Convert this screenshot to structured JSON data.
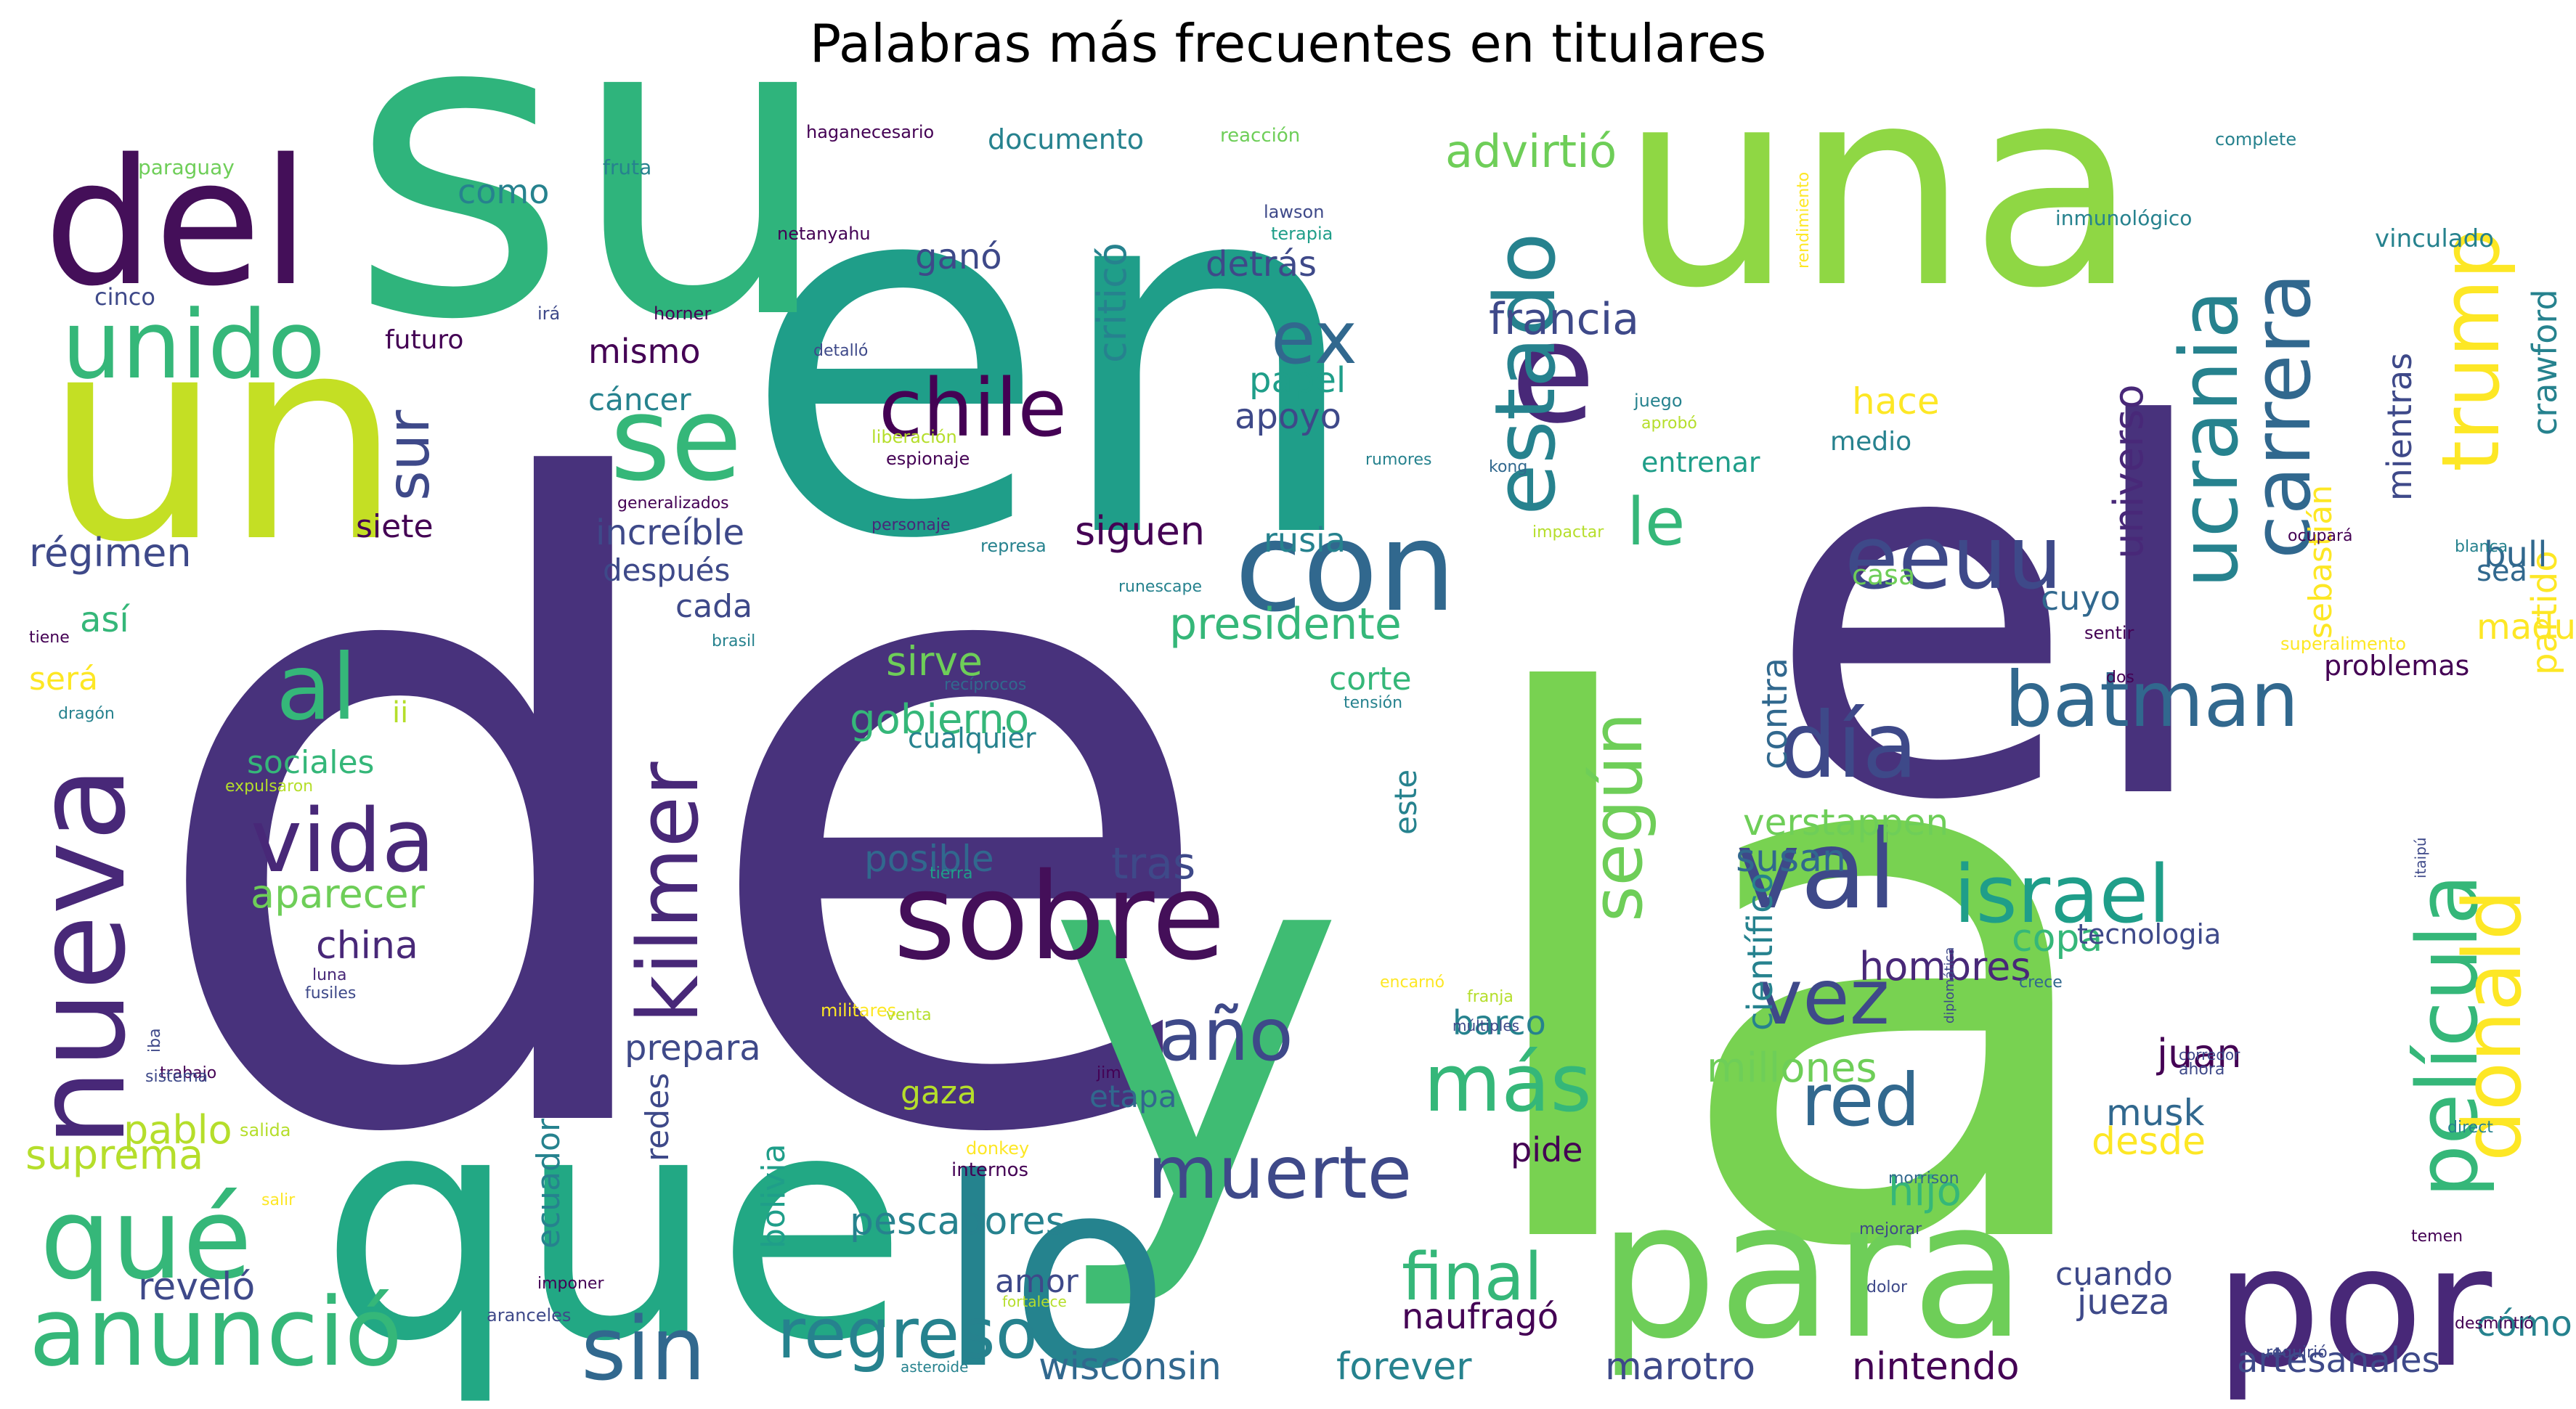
{
  "title": "Palabras más frecuentes en titulares",
  "palette": [
    "#440154",
    "#482878",
    "#3e4989",
    "#31688e",
    "#26828e",
    "#1f9e89",
    "#35b779",
    "#6ece58",
    "#b5de2b",
    "#fde725"
  ],
  "words": [
    {
      "text": "de",
      "color": "#48327c"
    },
    {
      "text": "la",
      "color": "#78d251"
    },
    {
      "text": "el",
      "color": "#48327c"
    },
    {
      "text": "en",
      "color": "#1f9e89"
    },
    {
      "text": "su",
      "color": "#2fb47c"
    },
    {
      "text": "que",
      "color": "#22a884"
    },
    {
      "text": "y",
      "color": "#3fbc73"
    },
    {
      "text": "un",
      "color": "#c4df24"
    },
    {
      "text": "una",
      "color": "#8fd744"
    },
    {
      "text": "lo",
      "color": "#25838e"
    },
    {
      "text": "del",
      "color": "#440f59"
    },
    {
      "text": "para",
      "color": "#6ece58"
    },
    {
      "text": "por",
      "color": "#482878"
    },
    {
      "text": "con",
      "color": "#31688e"
    },
    {
      "text": "e",
      "color": "#482878"
    },
    {
      "text": "se",
      "color": "#35b779"
    },
    {
      "text": "sobre",
      "color": "#440f59"
    },
    {
      "text": "val",
      "color": "#3e4989"
    },
    {
      "text": "nueva",
      "color": "#482878"
    },
    {
      "text": "unido",
      "color": "#35b779"
    },
    {
      "text": "qué",
      "color": "#35b779"
    },
    {
      "text": "anunció",
      "color": "#35b779"
    },
    {
      "text": "sin",
      "color": "#31688e"
    },
    {
      "text": "kilmer",
      "color": "#482878"
    },
    {
      "text": "vida",
      "color": "#482878"
    },
    {
      "text": "al",
      "color": "#35b779"
    },
    {
      "text": "eeuu",
      "color": "#3e4989"
    },
    {
      "text": "día",
      "color": "#3e4989"
    },
    {
      "text": "batman",
      "color": "#31688e"
    },
    {
      "text": "israel",
      "color": "#1f9e89"
    },
    {
      "text": "vez",
      "color": "#3e4989"
    },
    {
      "text": "chile",
      "color": "#440154"
    },
    {
      "text": "estado",
      "color": "#26828e"
    },
    {
      "text": "ex",
      "color": "#31688e"
    },
    {
      "text": "ucrania",
      "color": "#26828e"
    },
    {
      "text": "carrera",
      "color": "#31688e"
    },
    {
      "text": "trump",
      "color": "#fde725"
    },
    {
      "text": "película",
      "color": "#35b779"
    },
    {
      "text": "donald",
      "color": "#fde725"
    },
    {
      "text": "más",
      "color": "#35b779"
    },
    {
      "text": "red",
      "color": "#31688e"
    },
    {
      "text": "muerte",
      "color": "#3e4989"
    },
    {
      "text": "año",
      "color": "#3e4989"
    },
    {
      "text": "regreso",
      "color": "#26828e"
    },
    {
      "text": "final",
      "color": "#35b779"
    },
    {
      "text": "según",
      "color": "#6ece58"
    },
    {
      "text": "le",
      "color": "#35b779"
    },
    {
      "text": "sur",
      "color": "#3e4989"
    },
    {
      "text": "advirtió",
      "color": "#6ece58"
    },
    {
      "text": "francia",
      "color": "#3e4989"
    },
    {
      "text": "presidente",
      "color": "#35b779"
    },
    {
      "text": "gobierno",
      "color": "#35b779"
    },
    {
      "text": "sirve",
      "color": "#6ece58"
    },
    {
      "text": "posible",
      "color": "#31688e"
    },
    {
      "text": "tras",
      "color": "#3e4989"
    },
    {
      "text": "aparecer",
      "color": "#6ece58"
    },
    {
      "text": "china",
      "color": "#482878"
    },
    {
      "text": "pablo",
      "color": "#b5de2b"
    },
    {
      "text": "suprema",
      "color": "#b5de2b"
    },
    {
      "text": "reveló",
      "color": "#3e4989"
    },
    {
      "text": "pescadores",
      "color": "#26828e"
    },
    {
      "text": "wisconsin",
      "color": "#31688e"
    },
    {
      "text": "forever",
      "color": "#26828e"
    },
    {
      "text": "naufragó",
      "color": "#440154"
    },
    {
      "text": "marotro",
      "color": "#3e4989"
    },
    {
      "text": "nintendo",
      "color": "#440154"
    },
    {
      "text": "artesanales",
      "color": "#3e4989"
    },
    {
      "text": "cómo",
      "color": "#26828e"
    },
    {
      "text": "jueza",
      "color": "#3e4989"
    },
    {
      "text": "cuando",
      "color": "#3e4989"
    },
    {
      "text": "desde",
      "color": "#fde725"
    },
    {
      "text": "musk",
      "color": "#31688e"
    },
    {
      "text": "juan",
      "color": "#440154"
    },
    {
      "text": "hijo",
      "color": "#35b779"
    },
    {
      "text": "millones",
      "color": "#6ece58"
    },
    {
      "text": "hombres",
      "color": "#482878"
    },
    {
      "text": "copa",
      "color": "#35b779"
    },
    {
      "text": "tecnologia",
      "color": "#3e4989"
    },
    {
      "text": "verstappen",
      "color": "#6ece58"
    },
    {
      "text": "susan",
      "color": "#31688e"
    },
    {
      "text": "contra",
      "color": "#31688e"
    },
    {
      "text": "científico",
      "color": "#26828e"
    },
    {
      "text": "partido",
      "color": "#fde725"
    },
    {
      "text": "maduro",
      "color": "#fde725"
    },
    {
      "text": "sea",
      "color": "#31688e"
    },
    {
      "text": "bull",
      "color": "#31688e"
    },
    {
      "text": "mientras",
      "color": "#3e4989"
    },
    {
      "text": "crawford",
      "color": "#26828e"
    },
    {
      "text": "sebastián",
      "color": "#fde725"
    },
    {
      "text": "universo",
      "color": "#482878"
    },
    {
      "text": "hace",
      "color": "#fde725"
    },
    {
      "text": "medio",
      "color": "#26828e"
    },
    {
      "text": "siguen",
      "color": "#440154"
    },
    {
      "text": "cuyo",
      "color": "#31688e"
    },
    {
      "text": "rusia",
      "color": "#26828e"
    },
    {
      "text": "apoyo",
      "color": "#3e4989"
    },
    {
      "text": "papel",
      "color": "#1f9e89"
    },
    {
      "text": "detrás",
      "color": "#3e4989"
    },
    {
      "text": "ganó",
      "color": "#3e4989"
    },
    {
      "text": "criticó",
      "color": "#26828e"
    },
    {
      "text": "documento",
      "color": "#26828e"
    },
    {
      "text": "como",
      "color": "#26828e"
    },
    {
      "text": "mismo",
      "color": "#440154"
    },
    {
      "text": "cáncer",
      "color": "#26828e"
    },
    {
      "text": "increíble",
      "color": "#3e4989"
    },
    {
      "text": "después",
      "color": "#3e4989"
    },
    {
      "text": "cada",
      "color": "#3e4989"
    },
    {
      "text": "siete",
      "color": "#440154"
    },
    {
      "text": "régimen",
      "color": "#3e4989"
    },
    {
      "text": "así",
      "color": "#35b779"
    },
    {
      "text": "será",
      "color": "#fde725"
    },
    {
      "text": "ii",
      "color": "#b5de2b"
    },
    {
      "text": "sociales",
      "color": "#35b779"
    },
    {
      "text": "corte",
      "color": "#35b779"
    },
    {
      "text": "cualquier",
      "color": "#26828e"
    },
    {
      "text": "barco",
      "color": "#26828e"
    },
    {
      "text": "prepara",
      "color": "#3e4989"
    },
    {
      "text": "gaza",
      "color": "#b5de2b"
    },
    {
      "text": "etapa",
      "color": "#31688e"
    },
    {
      "text": "pide",
      "color": "#440154"
    },
    {
      "text": "amor",
      "color": "#3e4989"
    },
    {
      "text": "redes",
      "color": "#3e4989"
    },
    {
      "text": "ecuador",
      "color": "#26828e"
    },
    {
      "text": "bolivia",
      "color": "#1f9e89"
    },
    {
      "text": "este",
      "color": "#26828e"
    },
    {
      "text": "futuro",
      "color": "#440154"
    },
    {
      "text": "cinco",
      "color": "#3e4989"
    },
    {
      "text": "fruta",
      "color": "#26828e"
    },
    {
      "text": "paraguay",
      "color": "#6ece58"
    },
    {
      "text": "haganecesario",
      "color": "#440154"
    },
    {
      "text": "reacción",
      "color": "#6ece58"
    },
    {
      "text": "lawson",
      "color": "#3e4989"
    },
    {
      "text": "terapia",
      "color": "#1f9e89"
    },
    {
      "text": "netanyahu",
      "color": "#440154"
    },
    {
      "text": "horner",
      "color": "#440154"
    },
    {
      "text": "irá",
      "color": "#3e4989"
    },
    {
      "text": "detalló",
      "color": "#3e4989"
    },
    {
      "text": "juego",
      "color": "#26828e"
    },
    {
      "text": "aprobó",
      "color": "#b5de2b"
    },
    {
      "text": "liberación",
      "color": "#b5de2b"
    },
    {
      "text": "espionaje",
      "color": "#440154"
    },
    {
      "text": "rumores",
      "color": "#26828e"
    },
    {
      "text": "kong",
      "color": "#31688e"
    },
    {
      "text": "entrenar",
      "color": "#1f9e89"
    },
    {
      "text": "generalizados",
      "color": "#440154"
    },
    {
      "text": "personaje",
      "color": "#482878"
    },
    {
      "text": "impactar",
      "color": "#b5de2b"
    },
    {
      "text": "represa",
      "color": "#26828e"
    },
    {
      "text": "runescape",
      "color": "#26828e"
    },
    {
      "text": "casa",
      "color": "#6ece58"
    },
    {
      "text": "brasil",
      "color": "#26828e"
    },
    {
      "text": "recíprocos",
      "color": "#31688e"
    },
    {
      "text": "tensión",
      "color": "#26828e"
    },
    {
      "text": "tiene",
      "color": "#440154"
    },
    {
      "text": "dragón",
      "color": "#26828e"
    },
    {
      "text": "expulsaron",
      "color": "#b5de2b"
    },
    {
      "text": "tierra",
      "color": "#1f9e89"
    },
    {
      "text": "luna",
      "color": "#482878"
    },
    {
      "text": "fusiles",
      "color": "#3e4989"
    },
    {
      "text": "militares",
      "color": "#fde725"
    },
    {
      "text": "venta",
      "color": "#b5de2b"
    },
    {
      "text": "iba",
      "color": "#3e4989"
    },
    {
      "text": "trabajo",
      "color": "#440154"
    },
    {
      "text": "sistema",
      "color": "#3e4989"
    },
    {
      "text": "jim",
      "color": "#440154"
    },
    {
      "text": "salida",
      "color": "#b5de2b"
    },
    {
      "text": "salir",
      "color": "#fde725"
    },
    {
      "text": "imponer",
      "color": "#440154"
    },
    {
      "text": "donkey",
      "color": "#fde725"
    },
    {
      "text": "internos",
      "color": "#440154"
    },
    {
      "text": "fortalece",
      "color": "#b5de2b"
    },
    {
      "text": "aranceles",
      "color": "#3e4989"
    },
    {
      "text": "asteroide",
      "color": "#26828e"
    },
    {
      "text": "encarnó",
      "color": "#fde725"
    },
    {
      "text": "franja",
      "color": "#b5de2b"
    },
    {
      "text": "múltiples",
      "color": "#3e4989"
    },
    {
      "text": "crece",
      "color": "#31688e"
    },
    {
      "text": "diplomática",
      "color": "#3e4989"
    },
    {
      "text": "morrison",
      "color": "#31688e"
    },
    {
      "text": "mejorar",
      "color": "#3e4989"
    },
    {
      "text": "ahora",
      "color": "#3e4989"
    },
    {
      "text": "corredor",
      "color": "#3e4989"
    },
    {
      "text": "dolor",
      "color": "#3e4989"
    },
    {
      "text": "requirió",
      "color": "#3e4989"
    },
    {
      "text": "desmintió",
      "color": "#440154"
    },
    {
      "text": "temen",
      "color": "#440154"
    },
    {
      "text": "direct",
      "color": "#26828e"
    },
    {
      "text": "itaipú",
      "color": "#3e4989"
    },
    {
      "text": "problemas",
      "color": "#440154"
    },
    {
      "text": "superalimento",
      "color": "#fde725"
    },
    {
      "text": "sentir",
      "color": "#440154"
    },
    {
      "text": "ocupará",
      "color": "#440154"
    },
    {
      "text": "blanca",
      "color": "#26828e"
    },
    {
      "text": "dos",
      "color": "#440154"
    },
    {
      "text": "inmunológico",
      "color": "#26828e"
    },
    {
      "text": "complete",
      "color": "#26828e"
    },
    {
      "text": "vinculado",
      "color": "#26828e"
    },
    {
      "text": "rendimiento",
      "color": "#fde725"
    }
  ]
}
